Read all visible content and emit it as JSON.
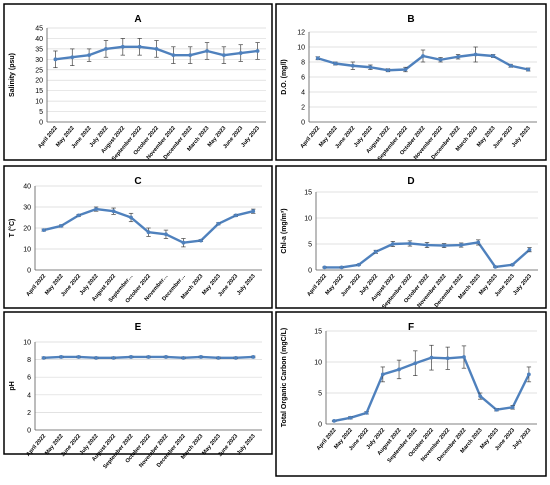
{
  "chart_data": [
    {
      "type": "line",
      "title": "A",
      "xlabel": "",
      "ylabel": "Salinity (psu)",
      "categories": [
        "April 2022",
        "May 2022",
        "June 2022",
        "July 2022",
        "August 2022",
        "September 2022",
        "October 2022",
        "November 2022",
        "December 2022",
        "March 2023",
        "May 2023",
        "June 2023",
        "July 2023"
      ],
      "series": [
        {
          "values": [
            30,
            31,
            32,
            35,
            36,
            36,
            35,
            32,
            32,
            34,
            32,
            33,
            34
          ],
          "errors": [
            4,
            4,
            3,
            4,
            4,
            4,
            4,
            4,
            4,
            4,
            4,
            4,
            4
          ]
        }
      ],
      "ylim": [
        0,
        45
      ],
      "yticks": [
        0,
        5,
        10,
        15,
        20,
        25,
        30,
        35,
        40,
        45
      ],
      "grid": true
    },
    {
      "type": "line",
      "title": "B",
      "xlabel": "",
      "ylabel": "D.O. (mg/l)",
      "categories": [
        "April 2022",
        "May 2022",
        "June 2022",
        "July 2022",
        "August 2022",
        "September 2022",
        "October 2022",
        "November 2022",
        "December 2022",
        "March 2023",
        "May 2023",
        "June 2023",
        "July 2023"
      ],
      "series": [
        {
          "values": [
            8.5,
            7.8,
            7.5,
            7.3,
            6.9,
            7.0,
            8.8,
            8.3,
            8.7,
            9.0,
            8.8,
            7.5,
            7.0
          ],
          "errors": [
            0.2,
            0.2,
            0.5,
            0.3,
            0.2,
            0.3,
            0.8,
            0.3,
            0.3,
            1.0,
            0.2,
            0.2,
            0.2
          ]
        }
      ],
      "ylim": [
        0,
        12
      ],
      "yticks": [
        0,
        2,
        4,
        6,
        8,
        10,
        12
      ],
      "grid": true
    },
    {
      "type": "line",
      "title": "C",
      "xlabel": "",
      "ylabel": "T (°C)",
      "categories": [
        "April 2022",
        "May 2022",
        "June 2022",
        "July 2022",
        "August 2022",
        "September…",
        "October 2022",
        "November…",
        "December…",
        "March 2023",
        "May 2023",
        "June 2023",
        "July 2023"
      ],
      "series": [
        {
          "values": [
            19,
            21,
            26,
            29,
            28,
            25,
            18,
            17,
            13,
            14,
            22,
            26,
            28
          ],
          "errors": [
            0.5,
            0.5,
            0.5,
            1.0,
            1.5,
            2.0,
            2.0,
            2.0,
            2.0,
            0.5,
            0.5,
            0.5,
            1.0
          ]
        }
      ],
      "ylim": [
        0,
        40
      ],
      "yticks": [
        0,
        10,
        20,
        30,
        40
      ],
      "grid": true
    },
    {
      "type": "line",
      "title": "D",
      "xlabel": "",
      "ylabel": "Chl-a (mg/m³)",
      "categories": [
        "April 2022",
        "May 2022",
        "June 2022",
        "July 2022",
        "August 2022",
        "September 2022",
        "October 2022",
        "November 2022",
        "December 2022",
        "March 2023",
        "May 2023",
        "June 2023",
        "July 2023"
      ],
      "series": [
        {
          "values": [
            0.5,
            0.5,
            1.0,
            3.5,
            5.0,
            5.1,
            4.8,
            4.7,
            4.8,
            5.3,
            0.6,
            1.0,
            3.9
          ],
          "errors": [
            0.1,
            0.1,
            0.1,
            0.3,
            0.5,
            0.5,
            0.5,
            0.4,
            0.4,
            0.5,
            0.1,
            0.1,
            0.4
          ]
        }
      ],
      "ylim": [
        0,
        15
      ],
      "yticks": [
        0,
        5,
        10,
        15
      ],
      "grid": true
    },
    {
      "type": "line",
      "title": "E",
      "xlabel": "",
      "ylabel": "pH",
      "categories": [
        "April 2022",
        "May 2022",
        "June 2022",
        "July 2022",
        "August 2022",
        "September 2022",
        "October 2022",
        "November 2022",
        "December 2022",
        "March 2023",
        "May 2023",
        "June 2023",
        "July 2023"
      ],
      "series": [
        {
          "values": [
            8.2,
            8.3,
            8.3,
            8.2,
            8.2,
            8.3,
            8.3,
            8.3,
            8.2,
            8.3,
            8.2,
            8.2,
            8.3
          ],
          "errors": [
            0.1,
            0.1,
            0.1,
            0.1,
            0.1,
            0.1,
            0.1,
            0.1,
            0.1,
            0.1,
            0.1,
            0.1,
            0.1
          ]
        }
      ],
      "ylim": [
        0,
        10
      ],
      "yticks": [
        0,
        2,
        4,
        6,
        8,
        10
      ],
      "grid": true
    },
    {
      "type": "line",
      "title": "F",
      "xlabel": "",
      "ylabel": "Total Organic Carbon (mgC/L)",
      "categories": [
        "April 2022",
        "May 2022",
        "June 2022",
        "July 2022",
        "August 2022",
        "September 2022",
        "October 2022",
        "November 2022",
        "December 2022",
        "March 2023",
        "May 2023",
        "June 2023",
        "July 2023"
      ],
      "series": [
        {
          "values": [
            0.5,
            1.0,
            1.8,
            8.0,
            8.8,
            9.8,
            10.7,
            10.6,
            10.8,
            4.5,
            2.3,
            2.7,
            8.0
          ],
          "errors": [
            0.1,
            0.2,
            0.2,
            1.2,
            1.5,
            2.0,
            2.0,
            1.8,
            1.8,
            0.5,
            0.2,
            0.3,
            1.2
          ]
        }
      ],
      "ylim": [
        0,
        15
      ],
      "yticks": [
        0,
        5,
        10,
        15
      ],
      "grid": true
    }
  ],
  "colors": {
    "line": "#4f81bd",
    "error_bar": "#404040",
    "grid": "#d9d9d9",
    "axis": "#595959",
    "panel_border": "#000000",
    "text": "#000000"
  }
}
